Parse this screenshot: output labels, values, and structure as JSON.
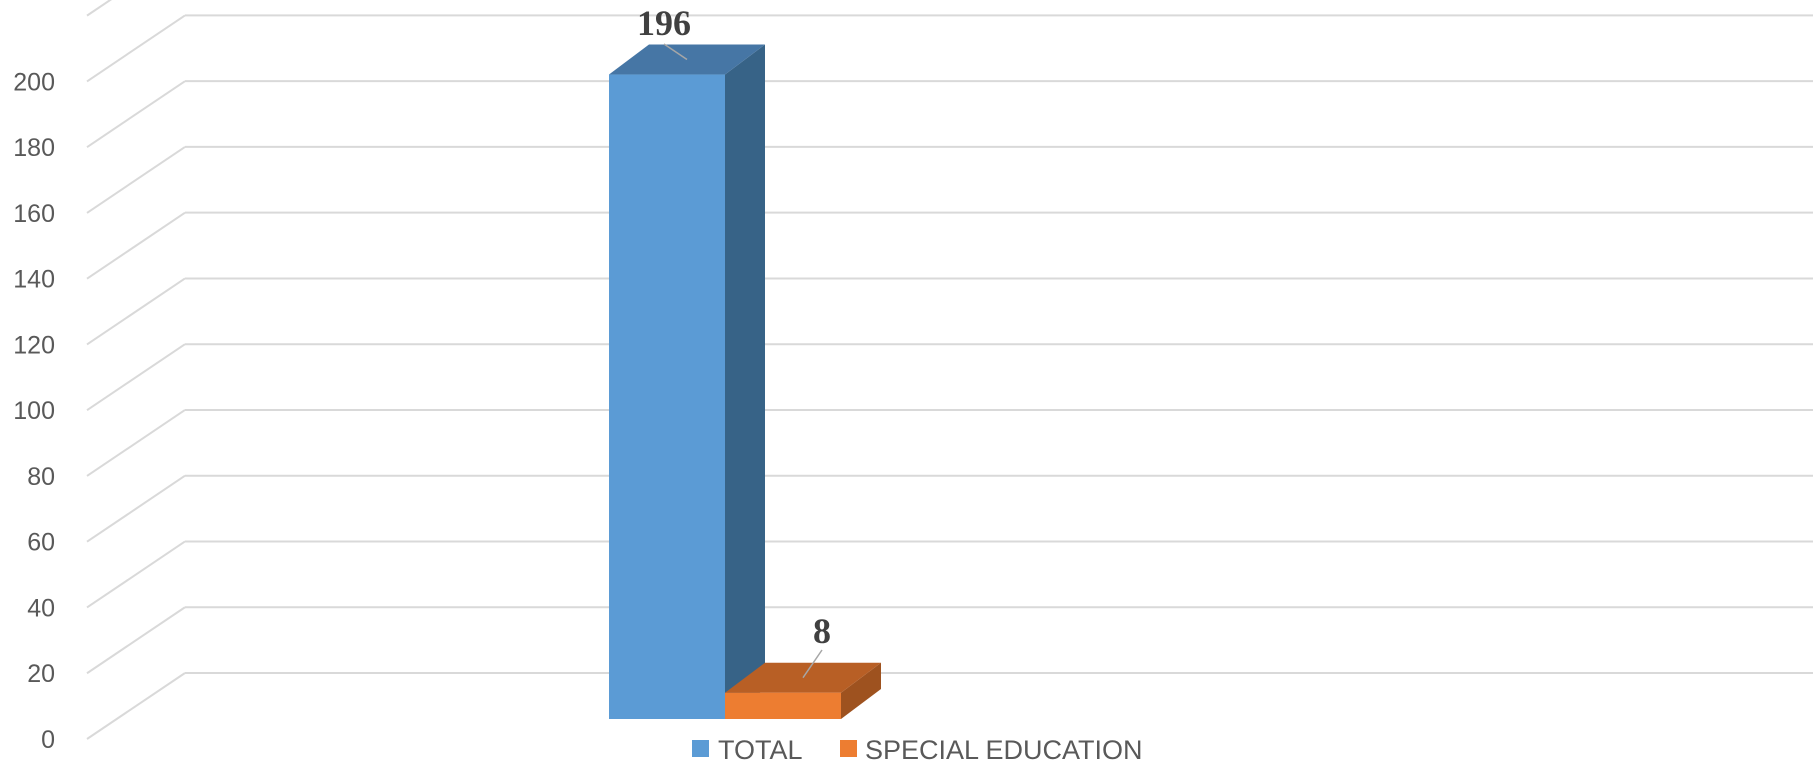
{
  "chart_data": {
    "type": "bar",
    "style": "3d-clustered-column",
    "categories": [
      ""
    ],
    "series": [
      {
        "name": "TOTAL",
        "values": [
          196
        ],
        "color": "#5B9BD5",
        "side_color": "#376387",
        "top_color": "#4676A5"
      },
      {
        "name": "SPECIAL EDUCATION",
        "values": [
          8
        ],
        "color": "#ED7D31",
        "side_color": "#9E521F",
        "top_color": "#B85F25"
      }
    ],
    "data_labels": [
      "196",
      "8"
    ],
    "yticks": [
      "0",
      "20",
      "40",
      "60",
      "80",
      "100",
      "120",
      "140",
      "160",
      "180",
      "200"
    ],
    "ylim": [
      0,
      200
    ],
    "extra_gridline_above_max": true,
    "grid": true,
    "legend": "bottom",
    "title": "",
    "xlabel": "",
    "ylabel": ""
  }
}
